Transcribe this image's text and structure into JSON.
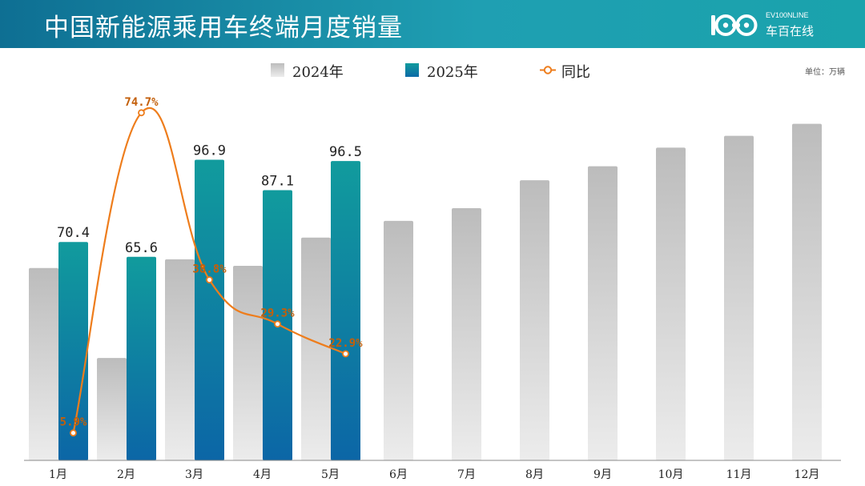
{
  "header": {
    "title": "中国新能源乘用车终端月度销量",
    "logo_text": "EV100NLINE",
    "logo_cn": "车百在线"
  },
  "unit_label": "单位：万辆",
  "colors": {
    "header_start": "#0e6f93",
    "header_end": "#1aa3ac",
    "bar_2024": "#c9c9c9",
    "bar_2025_top": "#119b9d",
    "bar_2025_bottom": "#0c6aa7",
    "line_yoy": "#ee7d1c",
    "yoy_label": "#c35f0a"
  },
  "chart_data": {
    "type": "bar",
    "categories": [
      "1月",
      "2月",
      "3月",
      "4月",
      "5月",
      "6月",
      "7月",
      "8月",
      "9月",
      "10月",
      "11月",
      "12月"
    ],
    "series": [
      {
        "name": "2024年",
        "type": "bar",
        "values": [
          62,
          33,
          64.8,
          62.7,
          71.8,
          77.2,
          81.3,
          90.3,
          94.8,
          100.8,
          104.6,
          108.5
        ]
      },
      {
        "name": "2025年",
        "type": "bar",
        "values": [
          70.4,
          65.6,
          96.9,
          87.1,
          96.5,
          null,
          null,
          null,
          null,
          null,
          null,
          null
        ],
        "labels": [
          "70.4",
          "65.6",
          "96.9",
          "87.1",
          "96.5"
        ]
      },
      {
        "name": "同比",
        "type": "line",
        "values": [
          5.9,
          74.7,
          38.8,
          29.3,
          22.9,
          null,
          null,
          null,
          null,
          null,
          null,
          null
        ],
        "labels": [
          "5.9%",
          "74.7%",
          "38.8%",
          "29.3%",
          "22.9%"
        ]
      }
    ],
    "ylim": [
      0,
      120
    ],
    "y2lim": [
      0,
      80
    ],
    "legend": "top-center",
    "grid": false
  }
}
